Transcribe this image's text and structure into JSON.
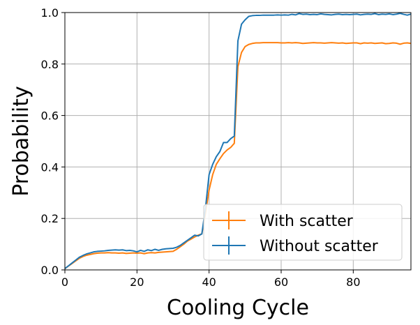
{
  "chart_data": {
    "type": "line",
    "title": "",
    "xlabel": "Cooling Cycle",
    "ylabel": "Probability",
    "xlim": [
      0,
      96
    ],
    "ylim": [
      0,
      1.0
    ],
    "x_ticks": [
      0,
      20,
      40,
      60,
      80
    ],
    "x_tick_labels": [
      "0",
      "20",
      "40",
      "60",
      "80"
    ],
    "y_ticks": [
      0,
      0.2,
      0.4,
      0.6,
      0.8,
      1.0
    ],
    "y_tick_labels": [
      "0.0",
      "0.2",
      "0.4",
      "0.6",
      "0.8",
      "1.0"
    ],
    "grid": true,
    "legend_position": "lower-right",
    "series": [
      {
        "name": "With scatter",
        "color": "#ff7f0e",
        "x": [
          0,
          1,
          2,
          3,
          4,
          5,
          6,
          7,
          8,
          9,
          10,
          11,
          12,
          13,
          14,
          15,
          16,
          17,
          18,
          19,
          20,
          21,
          22,
          23,
          24,
          25,
          26,
          27,
          28,
          29,
          30,
          31,
          32,
          33,
          34,
          35,
          36,
          37,
          38,
          39,
          40,
          41,
          42,
          43,
          44,
          45,
          46,
          47,
          48,
          49,
          50,
          51,
          52,
          53,
          54,
          55,
          56,
          57,
          58,
          59,
          60,
          61,
          62,
          63,
          64,
          65,
          66,
          67,
          68,
          69,
          70,
          71,
          72,
          73,
          74,
          75,
          76,
          77,
          78,
          79,
          80,
          81,
          82,
          83,
          84,
          85,
          86,
          87,
          88,
          89,
          90,
          91,
          92,
          93,
          94,
          95,
          96
        ],
        "y": [
          0.005,
          0.015,
          0.025,
          0.035,
          0.045,
          0.052,
          0.057,
          0.06,
          0.063,
          0.065,
          0.066,
          0.066,
          0.067,
          0.066,
          0.066,
          0.065,
          0.066,
          0.064,
          0.065,
          0.066,
          0.065,
          0.066,
          0.063,
          0.066,
          0.067,
          0.066,
          0.068,
          0.069,
          0.07,
          0.071,
          0.072,
          0.08,
          0.09,
          0.1,
          0.112,
          0.12,
          0.128,
          0.135,
          0.14,
          0.22,
          0.31,
          0.37,
          0.41,
          0.432,
          0.452,
          0.466,
          0.476,
          0.492,
          0.79,
          0.845,
          0.868,
          0.876,
          0.88,
          0.882,
          0.882,
          0.883,
          0.883,
          0.883,
          0.883,
          0.883,
          0.882,
          0.882,
          0.883,
          0.882,
          0.883,
          0.882,
          0.88,
          0.881,
          0.882,
          0.883,
          0.882,
          0.882,
          0.881,
          0.882,
          0.883,
          0.882,
          0.881,
          0.882,
          0.88,
          0.881,
          0.882,
          0.882,
          0.879,
          0.882,
          0.881,
          0.882,
          0.88,
          0.881,
          0.882,
          0.879,
          0.88,
          0.882,
          0.881,
          0.877,
          0.881,
          0.882,
          0.88
        ]
      },
      {
        "name": "Without scatter",
        "color": "#1f77b4",
        "x": [
          0,
          1,
          2,
          3,
          4,
          5,
          6,
          7,
          8,
          9,
          10,
          11,
          12,
          13,
          14,
          15,
          16,
          17,
          18,
          19,
          20,
          21,
          22,
          23,
          24,
          25,
          26,
          27,
          28,
          29,
          30,
          31,
          32,
          33,
          34,
          35,
          36,
          37,
          38,
          39,
          40,
          41,
          42,
          43,
          44,
          45,
          46,
          47,
          48,
          49,
          50,
          51,
          52,
          53,
          54,
          55,
          56,
          57,
          58,
          59,
          60,
          61,
          62,
          63,
          64,
          65,
          66,
          67,
          68,
          69,
          70,
          71,
          72,
          73,
          74,
          75,
          76,
          77,
          78,
          79,
          80,
          81,
          82,
          83,
          84,
          85,
          86,
          87,
          88,
          89,
          90,
          91,
          92,
          93,
          94,
          95,
          96
        ],
        "y": [
          0.005,
          0.016,
          0.027,
          0.038,
          0.049,
          0.056,
          0.062,
          0.066,
          0.07,
          0.072,
          0.073,
          0.074,
          0.076,
          0.077,
          0.078,
          0.077,
          0.078,
          0.075,
          0.076,
          0.074,
          0.07,
          0.076,
          0.072,
          0.078,
          0.075,
          0.08,
          0.076,
          0.08,
          0.082,
          0.083,
          0.084,
          0.088,
          0.095,
          0.105,
          0.115,
          0.125,
          0.135,
          0.132,
          0.14,
          0.24,
          0.37,
          0.41,
          0.44,
          0.46,
          0.495,
          0.495,
          0.51,
          0.52,
          0.89,
          0.955,
          0.972,
          0.985,
          0.988,
          0.989,
          0.989,
          0.99,
          0.99,
          0.99,
          0.99,
          0.991,
          0.99,
          0.991,
          0.99,
          0.993,
          0.991,
          0.996,
          0.993,
          0.994,
          0.992,
          0.993,
          0.992,
          0.995,
          0.993,
          0.992,
          0.991,
          0.993,
          0.994,
          0.992,
          0.993,
          0.992,
          0.993,
          0.994,
          0.991,
          0.993,
          0.994,
          0.993,
          0.996,
          0.992,
          0.994,
          0.993,
          0.995,
          0.992,
          0.994,
          0.997,
          0.993,
          0.99,
          0.994
        ]
      }
    ]
  }
}
